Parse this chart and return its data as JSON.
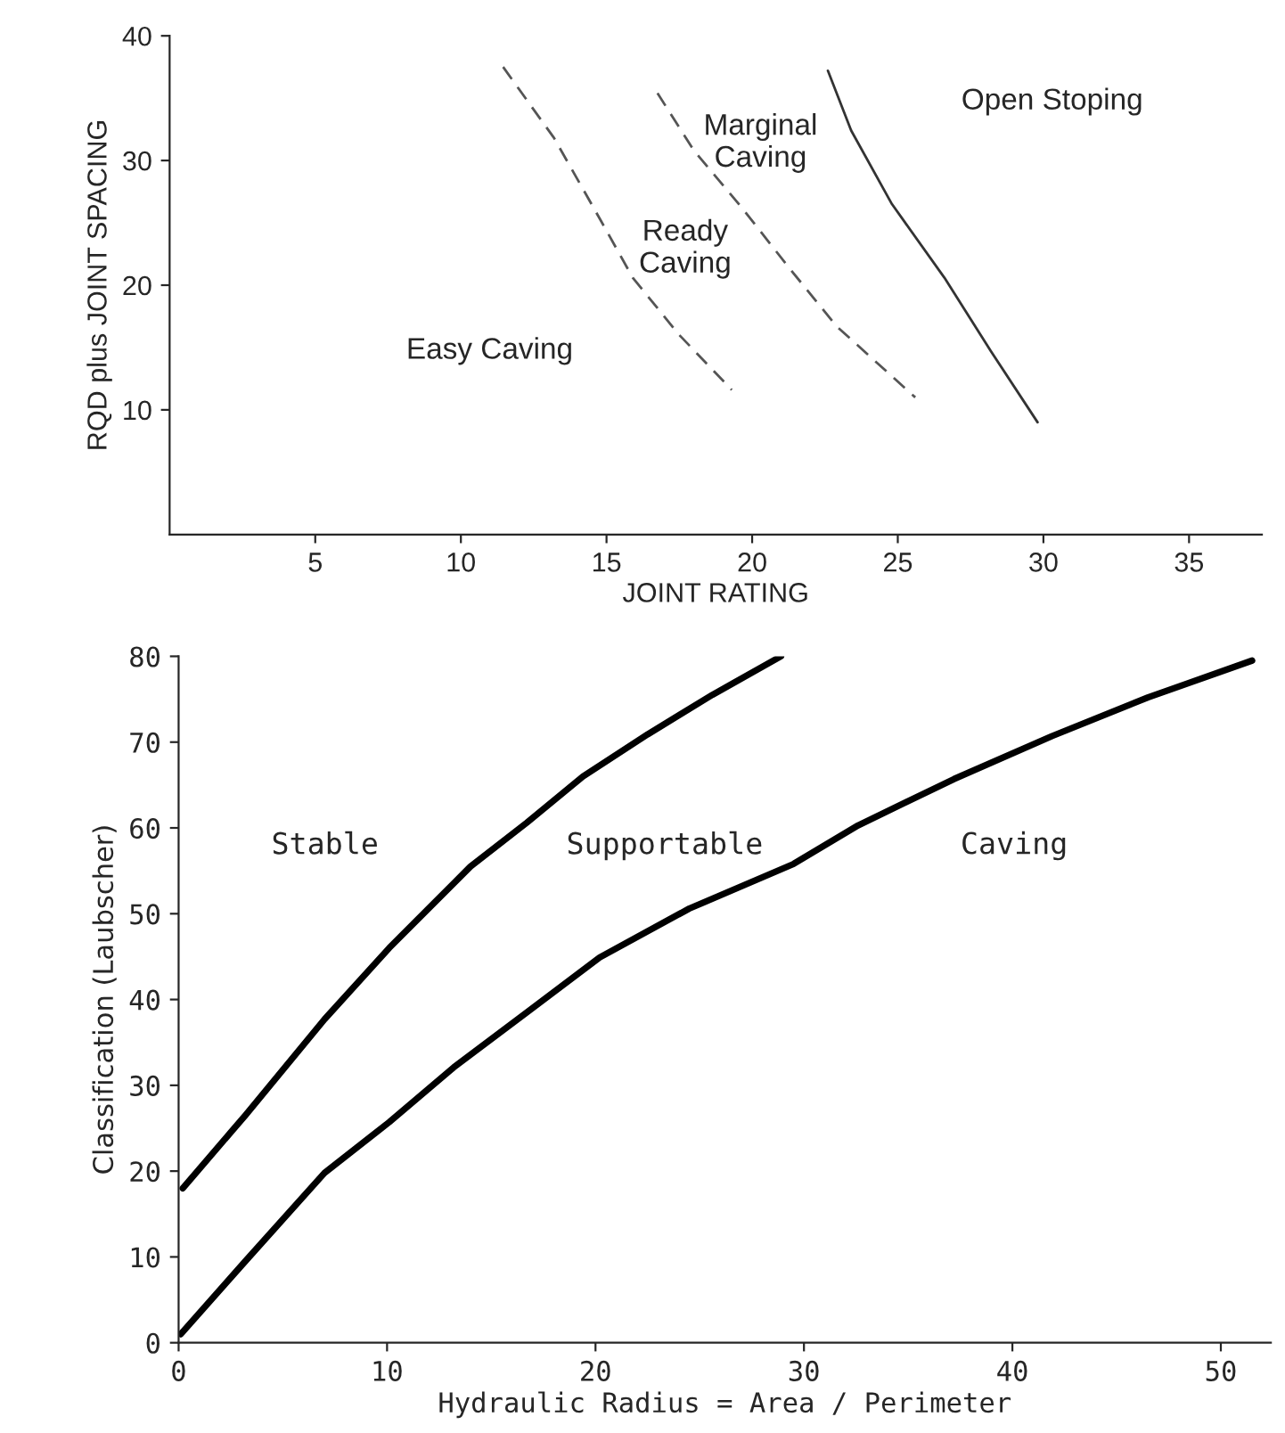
{
  "chart_data": [
    {
      "type": "line",
      "xlabel": "JOINT RATING",
      "ylabel": "RQD plus JOINT SPACING",
      "xlim": [
        0,
        37.5
      ],
      "ylim": [
        0,
        40
      ],
      "xticks": [
        5,
        10,
        15,
        20,
        25,
        30,
        35
      ],
      "yticks": [
        10,
        20,
        30,
        40
      ],
      "grid": false,
      "legend": false,
      "series": [
        {
          "color": "#555555",
          "line_style": "dashed",
          "x": [
            11.45,
            13.2,
            14.8,
            15.9,
            17.5,
            19.3
          ],
          "values": [
            37.5,
            31.8,
            25.2,
            20.6,
            16.0,
            11.6
          ]
        },
        {
          "color": "#555555",
          "line_style": "dashed",
          "x": [
            16.75,
            18.0,
            19.65,
            21.3,
            22.9,
            25.6
          ],
          "values": [
            35.4,
            30.8,
            26.2,
            21.3,
            16.7,
            11.0
          ]
        },
        {
          "color": "#333333",
          "line_style": "solid",
          "x": [
            22.6,
            23.4,
            24.8,
            26.6,
            28.2,
            29.8
          ],
          "values": [
            37.2,
            32.4,
            26.5,
            20.6,
            14.7,
            9.0
          ]
        }
      ],
      "annotations": [
        "Open Stoping",
        "Marginal\nCaving",
        "Ready\nCaving",
        "Easy Caving"
      ]
    },
    {
      "type": "line",
      "xlabel": "Hydraulic Radius = Area / Perimeter",
      "ylabel": "Classification (Laubscher)",
      "xlim": [
        0,
        52.4
      ],
      "ylim": [
        0,
        80
      ],
      "xticks": [
        0,
        10,
        20,
        30,
        40,
        50
      ],
      "yticks": [
        0,
        10,
        20,
        30,
        40,
        50,
        60,
        70,
        80
      ],
      "grid": false,
      "legend": false,
      "series": [
        {
          "color": "#000000",
          "line_style": "solid",
          "x": [
            0.2,
            3.2,
            7.0,
            10.1,
            14.0,
            16.7,
            19.4,
            22.5,
            25.6,
            28.9
          ],
          "values": [
            18,
            26.5,
            37.7,
            46.0,
            55.5,
            60.6,
            66.0,
            70.9,
            75.5,
            80
          ]
        },
        {
          "color": "#000000",
          "line_style": "solid",
          "x": [
            0.1,
            3.2,
            7.0,
            10.1,
            13.2,
            16.7,
            20.2,
            24.5,
            29.5,
            32.6,
            37.2,
            41.9,
            46.5,
            51.5
          ],
          "values": [
            1,
            9.5,
            19.8,
            25.7,
            32.1,
            38.5,
            44.9,
            50.6,
            55.8,
            60.3,
            65.7,
            70.7,
            75.2,
            79.5
          ]
        }
      ],
      "annotations": [
        "Stable",
        "Supportable",
        "Caving"
      ]
    }
  ]
}
